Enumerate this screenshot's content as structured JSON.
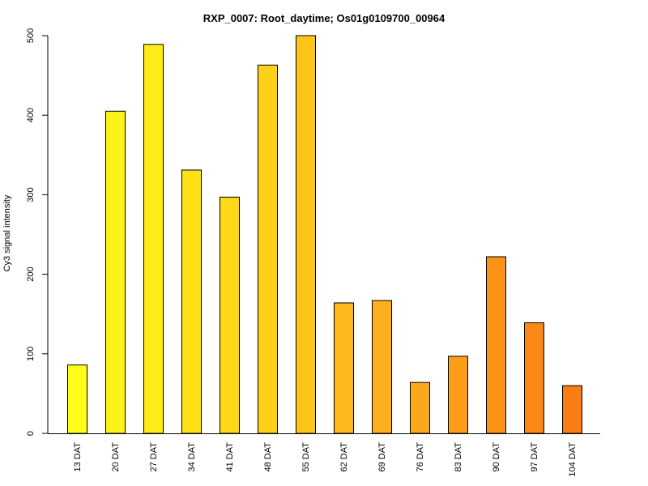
{
  "chart_data": {
    "type": "bar",
    "title": "RXP_0007: Root_daytime; Os01g0109700_00964",
    "xlabel": "",
    "ylabel": "Cy3 signal intensity",
    "ylim": [
      0,
      500
    ],
    "yticks": [
      0,
      100,
      200,
      300,
      400,
      500
    ],
    "categories": [
      "13 DAT",
      "20 DAT",
      "27 DAT",
      "34 DAT",
      "41 DAT",
      "48 DAT",
      "55 DAT",
      "62 DAT",
      "69 DAT",
      "76 DAT",
      "83 DAT",
      "90 DAT",
      "97 DAT",
      "104 DAT"
    ],
    "values": [
      86,
      405,
      489,
      331,
      297,
      463,
      500,
      164,
      167,
      64,
      97,
      222,
      139,
      60
    ],
    "colors": [
      "#FFFF1A",
      "#FFF119",
      "#FFEB18",
      "#FFE118",
      "#FDD818",
      "#FDD019",
      "#FDC419",
      "#FDB81B",
      "#FDAF1D",
      "#FCA81C",
      "#FC9E1A",
      "#FB9318",
      "#FA8716",
      "#F97D12"
    ],
    "grid": false,
    "legend": "none"
  }
}
